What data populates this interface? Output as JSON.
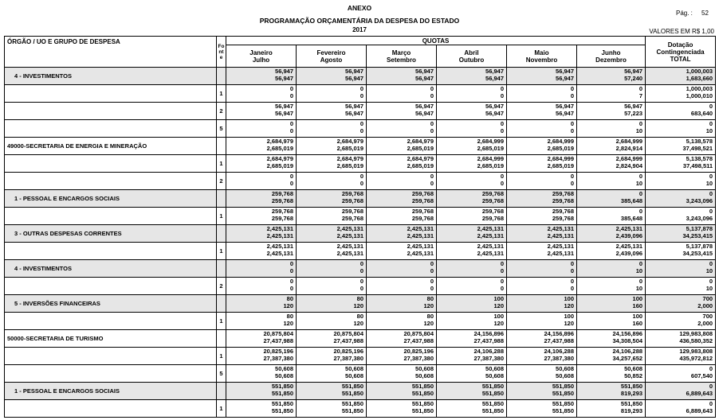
{
  "header": {
    "title": "ANEXO",
    "subtitle": "PROGRAMAÇÃO ORÇAMENTÁRIA DA DESPESA DO ESTADO",
    "year": "2017",
    "page_label": "Pág. :",
    "page": "52",
    "units": "VALORES EM R$ 1,00"
  },
  "table": {
    "col_label": "ÓRGÃO / UO  E GRUPO DE DESPESA",
    "col_fonte": "Fonte",
    "quotas": "QUOTAS",
    "months": [
      [
        "Janeiro",
        "Julho"
      ],
      [
        "Fevereiro",
        "Agosto"
      ],
      [
        "Março",
        "Setembro"
      ],
      [
        "Abril",
        "Outubro"
      ],
      [
        "Maio",
        "Novembro"
      ],
      [
        "Junho",
        "Dezembro"
      ]
    ],
    "total_head": [
      "Dotação",
      "Contingenciada",
      "TOTAL"
    ],
    "rows": [
      {
        "label": "4 - INVESTIMENTOS",
        "values": [
          [
            "56,947",
            "56,947"
          ],
          [
            "56,947",
            "56,947"
          ],
          [
            "56,947",
            "56,947"
          ],
          [
            "56,947",
            "56,947"
          ],
          [
            "56,947",
            "56,947"
          ],
          [
            "56,947",
            "57,240"
          ],
          [
            "1,000,003",
            "1,683,660"
          ]
        ]
      },
      {
        "fonte": "1",
        "values": [
          [
            "0",
            "0"
          ],
          [
            "0",
            "0"
          ],
          [
            "0",
            "0"
          ],
          [
            "0",
            "0"
          ],
          [
            "0",
            "0"
          ],
          [
            "0",
            "7"
          ],
          [
            "1,000,003",
            "1,000,010"
          ]
        ]
      },
      {
        "fonte": "2",
        "values": [
          [
            "56,947",
            "56,947"
          ],
          [
            "56,947",
            "56,947"
          ],
          [
            "56,947",
            "56,947"
          ],
          [
            "56,947",
            "56,947"
          ],
          [
            "56,947",
            "56,947"
          ],
          [
            "56,947",
            "57,223"
          ],
          [
            "0",
            "683,640"
          ]
        ]
      },
      {
        "fonte": "5",
        "values": [
          [
            "0",
            "0"
          ],
          [
            "0",
            "0"
          ],
          [
            "0",
            "0"
          ],
          [
            "0",
            "0"
          ],
          [
            "0",
            "0"
          ],
          [
            "0",
            "10"
          ],
          [
            "0",
            "10"
          ]
        ]
      },
      {
        "label": "49000-SECRETARIA DE ENERGIA E MINERAÇÃO",
        "values": [
          [
            "2,684,979",
            "2,685,019"
          ],
          [
            "2,684,979",
            "2,685,019"
          ],
          [
            "2,684,979",
            "2,685,019"
          ],
          [
            "2,684,999",
            "2,685,019"
          ],
          [
            "2,684,999",
            "2,685,019"
          ],
          [
            "2,684,999",
            "2,824,914"
          ],
          [
            "5,138,578",
            "37,498,521"
          ]
        ]
      },
      {
        "fonte": "1",
        "values": [
          [
            "2,684,979",
            "2,685,019"
          ],
          [
            "2,684,979",
            "2,685,019"
          ],
          [
            "2,684,979",
            "2,685,019"
          ],
          [
            "2,684,999",
            "2,685,019"
          ],
          [
            "2,684,999",
            "2,685,019"
          ],
          [
            "2,684,999",
            "2,824,904"
          ],
          [
            "5,138,578",
            "37,498,511"
          ]
        ]
      },
      {
        "fonte": "2",
        "values": [
          [
            "0",
            "0"
          ],
          [
            "0",
            "0"
          ],
          [
            "0",
            "0"
          ],
          [
            "0",
            "0"
          ],
          [
            "0",
            "0"
          ],
          [
            "0",
            "10"
          ],
          [
            "0",
            "10"
          ]
        ]
      },
      {
        "label": "1 - PESSOAL E ENCARGOS SOCIAIS",
        "values": [
          [
            "259,768",
            "259,768"
          ],
          [
            "259,768",
            "259,768"
          ],
          [
            "259,768",
            "259,768"
          ],
          [
            "259,768",
            "259,768"
          ],
          [
            "259,768",
            "259,768"
          ],
          [
            "0",
            "385,648"
          ],
          [
            "0",
            "3,243,096"
          ]
        ]
      },
      {
        "fonte": "1",
        "values": [
          [
            "259,768",
            "259,768"
          ],
          [
            "259,768",
            "259,768"
          ],
          [
            "259,768",
            "259,768"
          ],
          [
            "259,768",
            "259,768"
          ],
          [
            "259,768",
            "259,768"
          ],
          [
            "0",
            "385,648"
          ],
          [
            "0",
            "3,243,096"
          ]
        ]
      },
      {
        "label": "3 - OUTRAS DESPESAS CORRENTES",
        "values": [
          [
            "2,425,131",
            "2,425,131"
          ],
          [
            "2,425,131",
            "2,425,131"
          ],
          [
            "2,425,131",
            "2,425,131"
          ],
          [
            "2,425,131",
            "2,425,131"
          ],
          [
            "2,425,131",
            "2,425,131"
          ],
          [
            "2,425,131",
            "2,439,096"
          ],
          [
            "5,137,878",
            "34,253,415"
          ]
        ]
      },
      {
        "fonte": "1",
        "values": [
          [
            "2,425,131",
            "2,425,131"
          ],
          [
            "2,425,131",
            "2,425,131"
          ],
          [
            "2,425,131",
            "2,425,131"
          ],
          [
            "2,425,131",
            "2,425,131"
          ],
          [
            "2,425,131",
            "2,425,131"
          ],
          [
            "2,425,131",
            "2,439,096"
          ],
          [
            "5,137,878",
            "34,253,415"
          ]
        ]
      },
      {
        "label": "4 - INVESTIMENTOS",
        "values": [
          [
            "0",
            "0"
          ],
          [
            "0",
            "0"
          ],
          [
            "0",
            "0"
          ],
          [
            "0",
            "0"
          ],
          [
            "0",
            "0"
          ],
          [
            "0",
            "10"
          ],
          [
            "0",
            "10"
          ]
        ]
      },
      {
        "fonte": "2",
        "values": [
          [
            "0",
            "0"
          ],
          [
            "0",
            "0"
          ],
          [
            "0",
            "0"
          ],
          [
            "0",
            "0"
          ],
          [
            "0",
            "0"
          ],
          [
            "0",
            "10"
          ],
          [
            "0",
            "10"
          ]
        ]
      },
      {
        "label": "5 - INVERSÕES FINANCEIRAS",
        "values": [
          [
            "80",
            "120"
          ],
          [
            "80",
            "120"
          ],
          [
            "80",
            "120"
          ],
          [
            "100",
            "120"
          ],
          [
            "100",
            "120"
          ],
          [
            "100",
            "160"
          ],
          [
            "700",
            "2,000"
          ]
        ]
      },
      {
        "fonte": "1",
        "values": [
          [
            "80",
            "120"
          ],
          [
            "80",
            "120"
          ],
          [
            "80",
            "120"
          ],
          [
            "100",
            "120"
          ],
          [
            "100",
            "120"
          ],
          [
            "100",
            "160"
          ],
          [
            "700",
            "2,000"
          ]
        ]
      },
      {
        "label": "50000-SECRETARIA DE TURISMO",
        "values": [
          [
            "20,875,804",
            "27,437,988"
          ],
          [
            "20,875,804",
            "27,437,988"
          ],
          [
            "20,875,804",
            "27,437,988"
          ],
          [
            "24,156,896",
            "27,437,988"
          ],
          [
            "24,156,896",
            "27,437,988"
          ],
          [
            "24,156,896",
            "34,308,504"
          ],
          [
            "129,983,808",
            "436,580,352"
          ]
        ]
      },
      {
        "fonte": "1",
        "values": [
          [
            "20,825,196",
            "27,387,380"
          ],
          [
            "20,825,196",
            "27,387,380"
          ],
          [
            "20,825,196",
            "27,387,380"
          ],
          [
            "24,106,288",
            "27,387,380"
          ],
          [
            "24,106,288",
            "27,387,380"
          ],
          [
            "24,106,288",
            "34,257,652"
          ],
          [
            "129,983,808",
            "435,972,812"
          ]
        ]
      },
      {
        "fonte": "5",
        "values": [
          [
            "50,608",
            "50,608"
          ],
          [
            "50,608",
            "50,608"
          ],
          [
            "50,608",
            "50,608"
          ],
          [
            "50,608",
            "50,608"
          ],
          [
            "50,608",
            "50,608"
          ],
          [
            "50,608",
            "50,852"
          ],
          [
            "0",
            "607,540"
          ]
        ]
      },
      {
        "label": "1 - PESSOAL E ENCARGOS SOCIAIS",
        "values": [
          [
            "551,850",
            "551,850"
          ],
          [
            "551,850",
            "551,850"
          ],
          [
            "551,850",
            "551,850"
          ],
          [
            "551,850",
            "551,850"
          ],
          [
            "551,850",
            "551,850"
          ],
          [
            "551,850",
            "819,293"
          ],
          [
            "0",
            "6,889,643"
          ]
        ]
      },
      {
        "fonte": "1",
        "values": [
          [
            "551,850",
            "551,850"
          ],
          [
            "551,850",
            "551,850"
          ],
          [
            "551,850",
            "551,850"
          ],
          [
            "551,850",
            "551,850"
          ],
          [
            "551,850",
            "551,850"
          ],
          [
            "551,850",
            "819,293"
          ],
          [
            "0",
            "6,889,643"
          ]
        ]
      }
    ]
  }
}
